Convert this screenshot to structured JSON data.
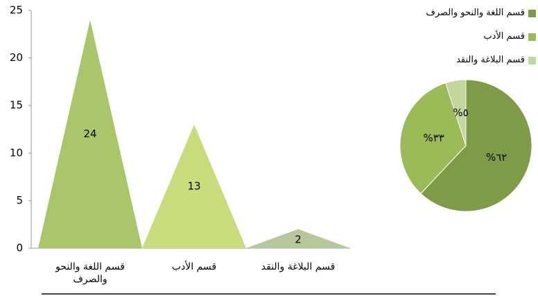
{
  "chart_data": [
    {
      "type": "bar",
      "categories": [
        "قسم اللغة والنحو والصرف",
        "قسم الأدب",
        "قسم البلاغة والنقد"
      ],
      "values": [
        24,
        13,
        2
      ],
      "colors": [
        "#a9c66a",
        "#c8dc7c",
        "#b6c89b"
      ],
      "ylim": [
        0,
        25
      ],
      "yticks": [
        0,
        5,
        10,
        15,
        20,
        25
      ]
    },
    {
      "type": "pie",
      "categories": [
        "قسم اللغة والنحو والصرف",
        "قسم الأدب",
        "قسم البلاغة والنقد"
      ],
      "values": [
        62,
        33,
        5
      ],
      "value_labels": [
        "%٦٢",
        "%٣٣",
        "%٥"
      ],
      "colors": [
        "#7e9c48",
        "#9bbb59",
        "#c3d69b"
      ],
      "legend": "top-right"
    }
  ]
}
